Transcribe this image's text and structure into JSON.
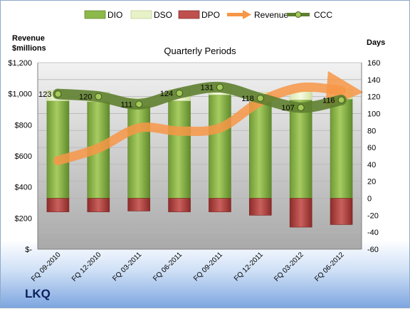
{
  "chart_data": {
    "type": "bar",
    "title": "Quarterly Periods",
    "company": "LKQ",
    "y_left_label": [
      "Revenue",
      "$millions"
    ],
    "y_right_label": "Days",
    "categories": [
      "FQ 09-2010",
      "FQ 12-2010",
      "FQ 03-2011",
      "FQ 06-2011",
      "FQ 09-2011",
      "FQ 12-2011",
      "FQ 03-2012",
      "FQ 06-2012"
    ],
    "left_axis": {
      "min": 0,
      "max": 1200,
      "ticks": [
        "$-",
        "$200",
        "$400",
        "$600",
        "$800",
        "$1,000",
        "$1,200"
      ]
    },
    "right_axis": {
      "min": -60,
      "max": 160,
      "ticks": [
        "-60",
        "-40",
        "-20",
        "0",
        "20",
        "40",
        "60",
        "80",
        "100",
        "120",
        "140",
        "160"
      ]
    },
    "series": [
      {
        "name": "DIO",
        "axis": "right",
        "color": "#8db84a",
        "values": [
          115,
          114,
          109,
          115,
          122,
          114,
          116,
          117
        ]
      },
      {
        "name": "DSO",
        "axis": "right",
        "color": "#e7f2c8",
        "values": [
          12,
          11,
          9,
          13,
          12,
          11,
          11,
          12
        ]
      },
      {
        "name": "DPO",
        "axis": "right",
        "color": "#c0504d",
        "values": [
          -16,
          -16,
          -15,
          -16,
          -16,
          -20,
          -34,
          -31
        ]
      },
      {
        "name": "Revenue",
        "axis": "left",
        "color": "#f79646",
        "values": [
          570,
          650,
          780,
          760,
          780,
          950,
          1040,
          1020
        ]
      },
      {
        "name": "CCC",
        "axis": "right",
        "color": "#5f7f30",
        "values": [
          123,
          120,
          111,
          124,
          131,
          118,
          107,
          116
        ]
      }
    ],
    "ccc_labels": [
      "123",
      "120",
      "111",
      "124",
      "131",
      "118",
      "107",
      "116"
    ],
    "grid": true,
    "legend_position": "top"
  }
}
